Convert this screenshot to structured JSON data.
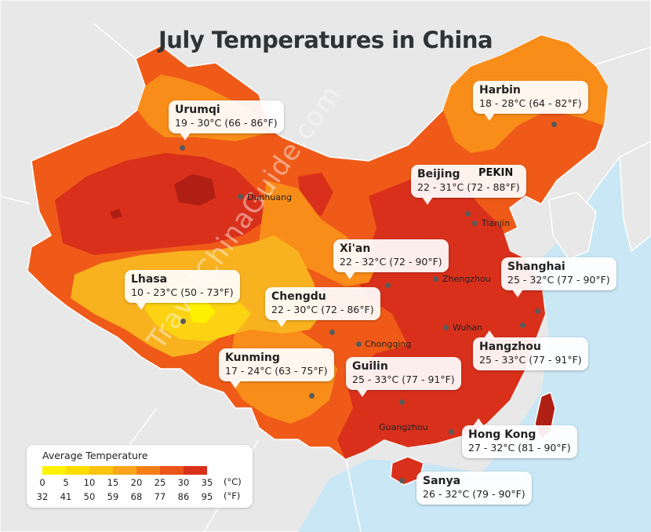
{
  "title": "July Temperatures in China",
  "watermark": "TravelChinaGuide.com",
  "extra_label": "PEKIN",
  "colors": {
    "sea": "#c9e7f5",
    "land_other": "#e9e9e9",
    "band_15": "#f9b21f",
    "band_20": "#f98d19",
    "band_25": "#ef5a18",
    "band_30": "#d9301b",
    "band_35": "#b01f14"
  },
  "callouts": [
    {
      "name": "Urumqi",
      "temp": "19 - 30°C (66 - 86°F)"
    },
    {
      "name": "Harbin",
      "temp": "18 - 28°C (64 - 82°F)"
    },
    {
      "name": "Beijing",
      "temp": "22 - 31°C (72 - 88°F)"
    },
    {
      "name": "Xi'an",
      "temp": "22 - 32°C (72 - 90°F)"
    },
    {
      "name": "Shanghai",
      "temp": "25 - 32°C (77 - 90°F)"
    },
    {
      "name": "Lhasa",
      "temp": "10 - 23°C (50 - 73°F)"
    },
    {
      "name": "Chengdu",
      "temp": "22 - 30°C (72 - 86°F)"
    },
    {
      "name": "Hangzhou",
      "temp": "25 - 33°C (77 - 91°F)"
    },
    {
      "name": "Kunming",
      "temp": "17 - 24°C (63 - 75°F)"
    },
    {
      "name": "Guilin",
      "temp": "25 - 33°C (77 - 91°F)"
    },
    {
      "name": "Hong Kong",
      "temp": "27 - 32°C (81 - 90°F)"
    },
    {
      "name": "Sanya",
      "temp": "26 - 32°C (79 - 90°F)"
    }
  ],
  "city_labels": [
    "Dunhuang",
    "Tianjin",
    "Zhengzhou",
    "Wuhan",
    "Chongqing",
    "Guangzhou"
  ],
  "legend": {
    "title": "Average Temperature",
    "celsius": [
      "0",
      "5",
      "10",
      "15",
      "20",
      "25",
      "30",
      "35"
    ],
    "fahrenheit": [
      "32",
      "41",
      "50",
      "59",
      "68",
      "77",
      "86",
      "95"
    ],
    "unit_c": "(°C)",
    "unit_f": "(°F)",
    "swatch_colors": [
      "#fff200",
      "#fedc00",
      "#fbc30f",
      "#f9a51a",
      "#f57f17",
      "#ec5518",
      "#d9301b"
    ]
  }
}
